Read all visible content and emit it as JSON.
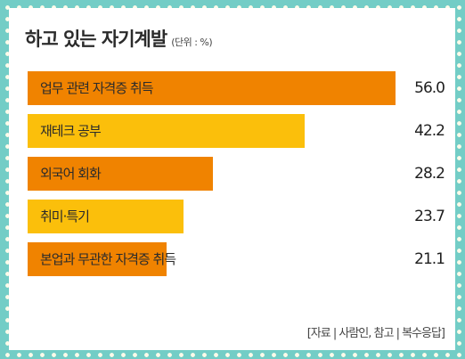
{
  "title": "하고 있는 자기계발",
  "unit": "(단위 : %)",
  "source": "[자료 | 사람인, 참고 | 복수응답]",
  "colors": {
    "background": "#73cdc6",
    "dots": "#fdfbe9",
    "card": "#ffffff",
    "orange": "#f08300",
    "yellow": "#fbbf0b"
  },
  "chart_data": {
    "type": "bar",
    "orientation": "horizontal",
    "title": "하고 있는 자기계발",
    "unit": "%",
    "categories": [
      "업무 관련 자격증 취득",
      "재테크 공부",
      "외국어 회화",
      "취미·특기",
      "본업과 무관한 자격증 취득"
    ],
    "values": [
      56.0,
      42.2,
      28.2,
      23.7,
      21.1
    ],
    "value_labels": [
      "56.0",
      "42.2",
      "28.2",
      "23.7",
      "21.1"
    ],
    "bar_colors": [
      "#f08300",
      "#fbbf0b",
      "#f08300",
      "#fbbf0b",
      "#f08300"
    ],
    "xlim": [
      0,
      56.0
    ],
    "grid": false,
    "legend": "none"
  }
}
